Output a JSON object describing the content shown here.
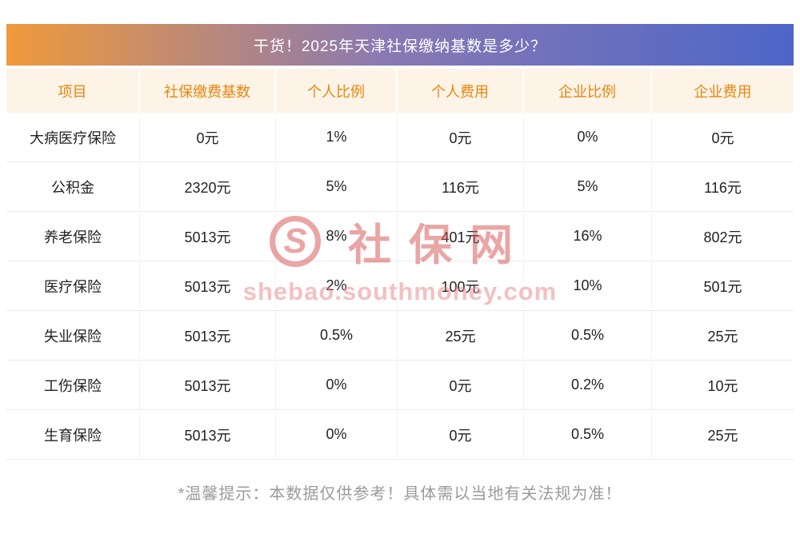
{
  "title": "干货！2025年天津社保缴纳基数是多少？",
  "chart_data": {
    "type": "table",
    "title": "干货！2025年天津社保缴纳基数是多少？",
    "columns": [
      "项目",
      "社保缴费基数",
      "个人比例",
      "个人费用",
      "企业比例",
      "企业费用"
    ],
    "rows": [
      [
        "大病医疗保险",
        "0元",
        "1%",
        "0元",
        "0%",
        "0元"
      ],
      [
        "公积金",
        "2320元",
        "5%",
        "116元",
        "5%",
        "116元"
      ],
      [
        "养老保险",
        "5013元",
        "8%",
        "401元",
        "16%",
        "802元"
      ],
      [
        "医疗保险",
        "5013元",
        "2%",
        "100元",
        "10%",
        "501元"
      ],
      [
        "失业保险",
        "5013元",
        "0.5%",
        "25元",
        "0.5%",
        "25元"
      ],
      [
        "工伤保险",
        "5013元",
        "0%",
        "0元",
        "0.2%",
        "10元"
      ],
      [
        "生育保险",
        "5013元",
        "0%",
        "0元",
        "0.5%",
        "25元"
      ]
    ]
  },
  "footer": {
    "note": "*温馨提示：本数据仅供参考！具体需以当地有关法规为准！"
  },
  "watermark": {
    "logo_letter": "S",
    "brand": "社保网",
    "url": "shebao.southmoney.com"
  },
  "colors": {
    "gradient_left": "#F09A3A",
    "gradient_right": "#4D66C8",
    "header_bg": "#FDF3E7",
    "header_text": "#E8860D",
    "row_border": "#ECECEC",
    "body_text": "#222222",
    "footer_text": "#9B9B9B",
    "watermark_red": "#D64D4D"
  }
}
